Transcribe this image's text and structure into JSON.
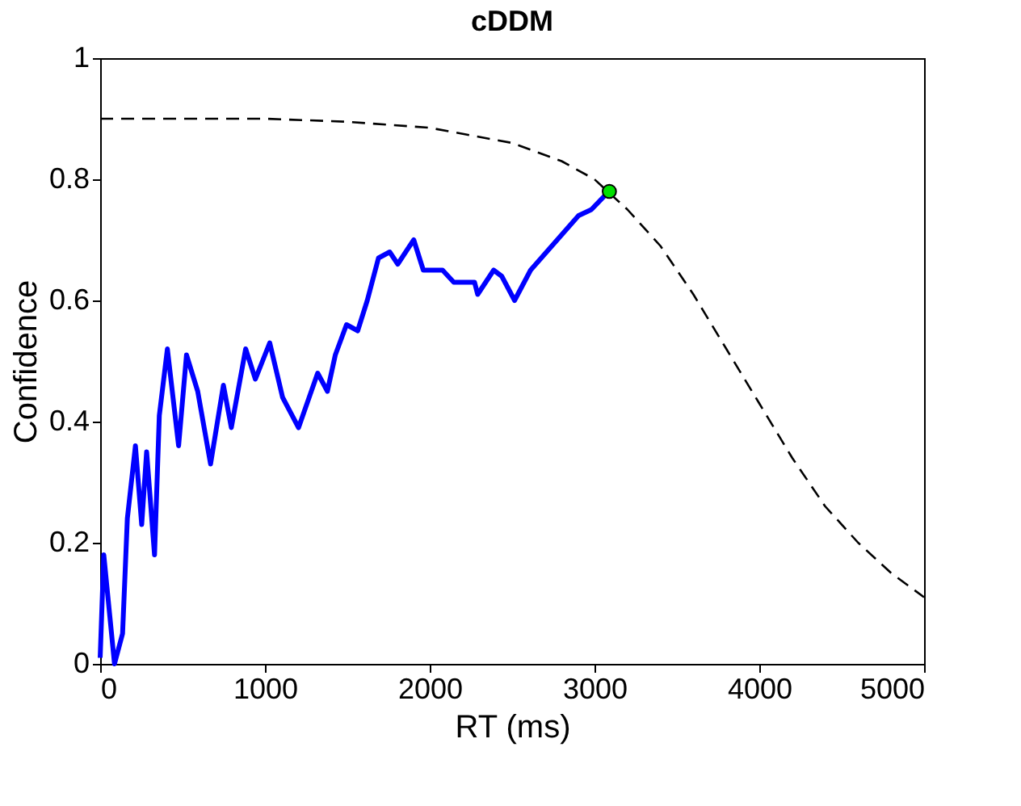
{
  "chart_data": {
    "type": "line",
    "title": "cDDM",
    "xlabel": "RT (ms)",
    "ylabel": "Confidence",
    "xlim": [
      0,
      5000
    ],
    "xticks": [
      0,
      1000,
      2000,
      3000,
      4000,
      5000
    ],
    "ylim": [
      0,
      1
    ],
    "yticks": [
      0,
      0.2,
      0.4,
      0.6,
      0.8,
      1
    ],
    "grid": false,
    "series": [
      {
        "color": "#0000ff",
        "line_style": "solid",
        "marker": "none",
        "x": [
          0,
          22,
          87,
          136,
          165,
          214,
          252,
          282,
          330,
          359,
          408,
          476,
          524,
          592,
          670,
          748,
          796,
          883,
          942,
          1029,
          1107,
          1204,
          1320,
          1379,
          1427,
          1495,
          1563,
          1621,
          1689,
          1757,
          1806,
          1903,
          1961,
          2078,
          2146,
          2272,
          2291,
          2388,
          2437,
          2515,
          2612,
          2709,
          2806,
          2903,
          2981,
          3087
        ],
        "values": [
          0.01,
          0.18,
          0.0,
          0.05,
          0.24,
          0.36,
          0.23,
          0.35,
          0.18,
          0.41,
          0.52,
          0.36,
          0.51,
          0.45,
          0.33,
          0.46,
          0.39,
          0.52,
          0.47,
          0.53,
          0.44,
          0.39,
          0.48,
          0.45,
          0.51,
          0.56,
          0.55,
          0.6,
          0.67,
          0.68,
          0.66,
          0.7,
          0.65,
          0.65,
          0.63,
          0.63,
          0.61,
          0.65,
          0.64,
          0.6,
          0.65,
          0.68,
          0.71,
          0.74,
          0.75,
          0.78
        ]
      },
      {
        "color": "#000000",
        "line_style": "dashed",
        "marker": "none",
        "x": [
          0,
          1000,
          1500,
          2000,
          2500,
          2800,
          3000,
          3200,
          3400,
          3600,
          3800,
          4000,
          4200,
          4400,
          4600,
          4800,
          5000
        ],
        "values": [
          0.9,
          0.9,
          0.895,
          0.885,
          0.86,
          0.83,
          0.8,
          0.75,
          0.69,
          0.61,
          0.52,
          0.43,
          0.34,
          0.26,
          0.2,
          0.15,
          0.11
        ]
      },
      {
        "type": "scatter",
        "color": "#00e000",
        "marker": "circle",
        "x": [
          3090
        ],
        "values": [
          0.78
        ]
      }
    ]
  }
}
